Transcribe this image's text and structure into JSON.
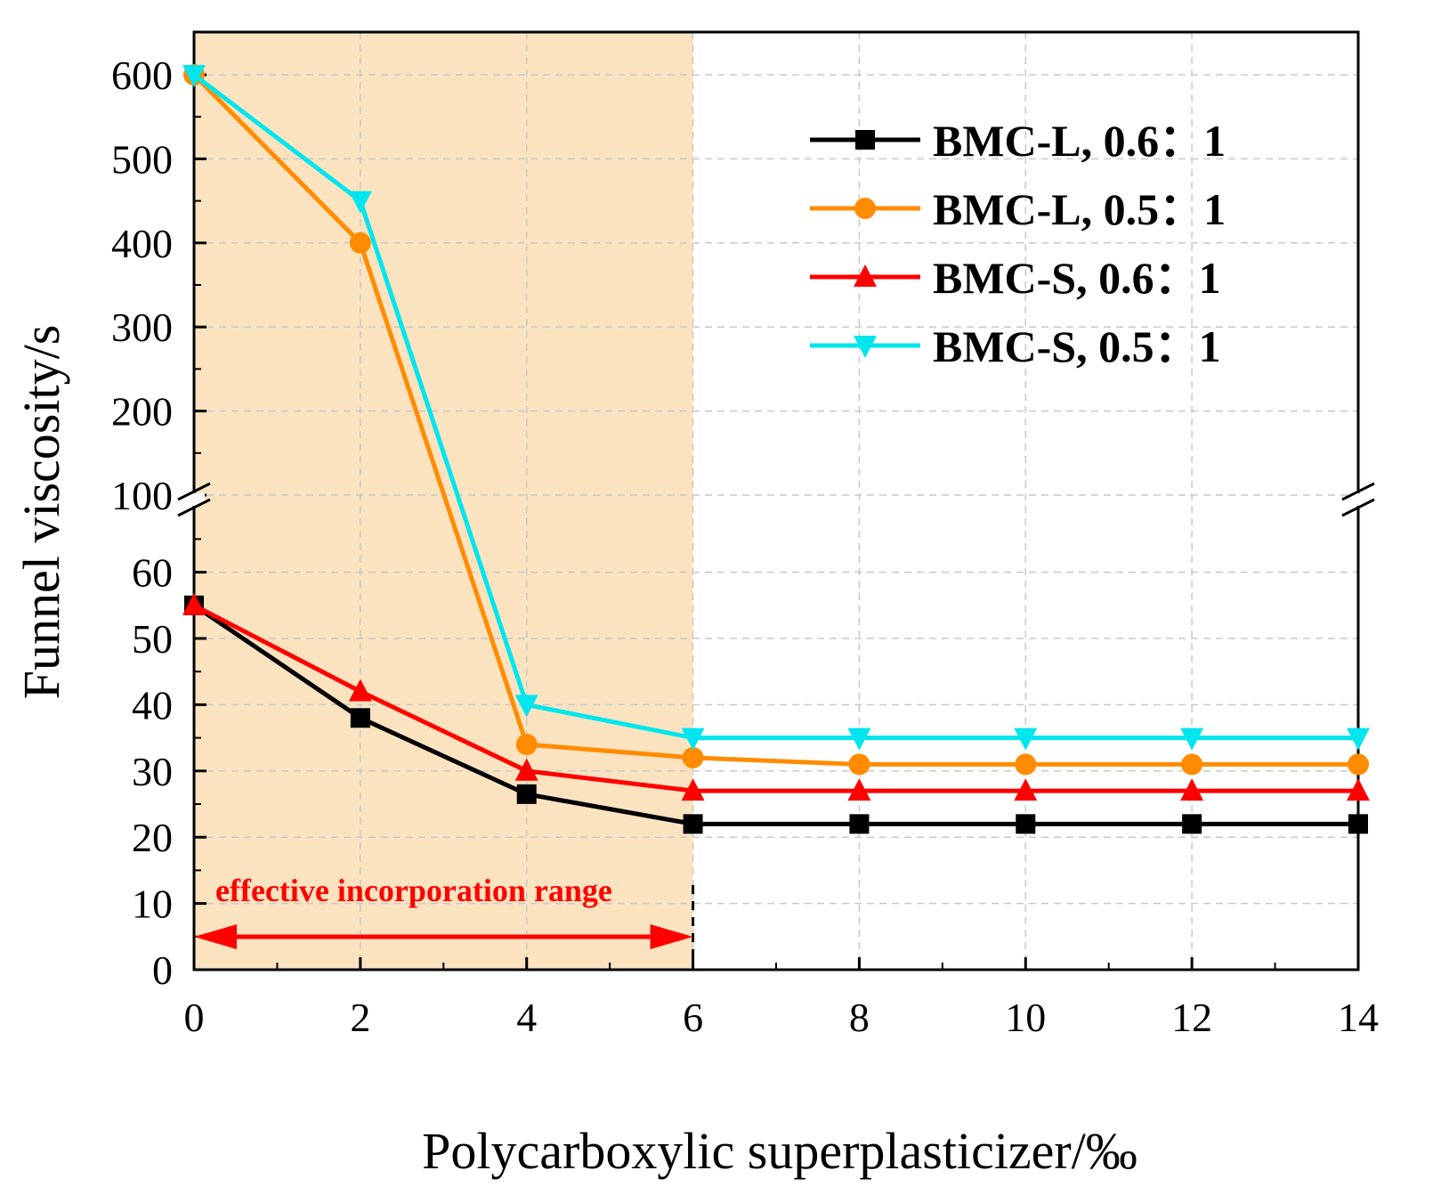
{
  "chart_data": {
    "type": "line",
    "title": "",
    "xlabel": "Polycarboxylic superplasticizer/‰",
    "ylabel": "Funnel viscosity/s",
    "x": [
      0,
      2,
      4,
      6,
      8,
      10,
      12,
      14
    ],
    "xlim": [
      0,
      14
    ],
    "x_ticks": [
      "0",
      "2",
      "4",
      "6",
      "8",
      "10",
      "12",
      "14"
    ],
    "ylim": [
      0,
      600
    ],
    "y_axis_break": {
      "lower_segment": [
        0,
        70
      ],
      "upper_segment": [
        100,
        650
      ]
    },
    "y_ticks": [
      "0",
      "10",
      "20",
      "30",
      "40",
      "50",
      "60",
      "100",
      "200",
      "300",
      "400",
      "500",
      "600"
    ],
    "grid": true,
    "legend_position": "top-right",
    "series": [
      {
        "name": "BMC-L, 0.6：1",
        "color": "#000000",
        "marker": "square",
        "values": [
          55,
          38,
          26.5,
          22,
          22,
          22,
          22,
          22
        ]
      },
      {
        "name": "BMC-L, 0.5：1",
        "color": "#FF8C00",
        "marker": "circle",
        "values": [
          600,
          400,
          34,
          32,
          31,
          31,
          31,
          31
        ]
      },
      {
        "name": "BMC-S, 0.6：1",
        "color": "#FF0000",
        "marker": "triangle-up",
        "values": [
          55,
          42,
          30,
          27,
          27,
          27,
          27,
          27
        ]
      },
      {
        "name": "BMC-S, 0.5：1",
        "color": "#00E5EE",
        "marker": "triangle-down",
        "values": [
          600,
          450,
          40,
          35,
          35,
          35,
          35,
          35
        ]
      }
    ],
    "highlight_region": {
      "x_range": [
        0,
        6
      ],
      "color": "#FBE3C0",
      "label": "effective incorporation range",
      "label_color": "#FF0000"
    }
  }
}
